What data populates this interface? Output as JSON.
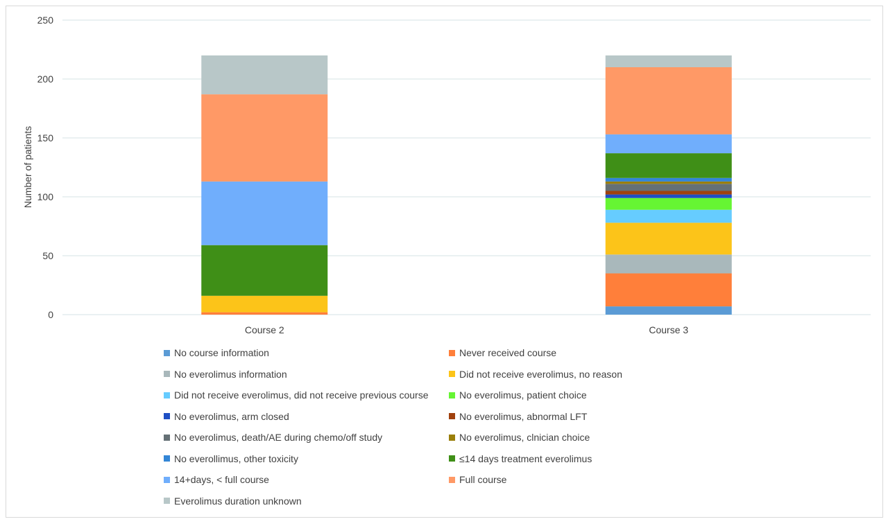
{
  "chart_data": {
    "type": "bar",
    "stacked": true,
    "title": "",
    "xlabel": "",
    "ylabel": "Number of patients",
    "ylim": [
      0,
      250
    ],
    "yticks": [
      0,
      50,
      100,
      150,
      200,
      250
    ],
    "grid": true,
    "legend_position": "bottom",
    "categories": [
      "Course 2",
      "Course 3"
    ],
    "series": [
      {
        "name": "No course information",
        "color": "#5b9bd5",
        "values": [
          0,
          7
        ]
      },
      {
        "name": "Never received course",
        "color": "#ff7f3a",
        "values": [
          2,
          28
        ]
      },
      {
        "name": "No everolimus information",
        "color": "#a9b8bb",
        "values": [
          0,
          16
        ]
      },
      {
        "name": "Did not receive everolimus, no reason",
        "color": "#fcc419",
        "values": [
          14,
          27
        ]
      },
      {
        "name": "Did not receive everolimus, did not receive previous course",
        "color": "#66ccff",
        "values": [
          0,
          11
        ]
      },
      {
        "name": "No everolimus, patient choice",
        "color": "#66f533",
        "values": [
          0,
          10
        ]
      },
      {
        "name": "No everolimus, arm closed",
        "color": "#1f4fc4",
        "values": [
          0,
          3
        ]
      },
      {
        "name": "No everolimus, abnormal LFT",
        "color": "#a0410d",
        "values": [
          0,
          3
        ]
      },
      {
        "name": "No everolimus, death/AE during chemo/off study",
        "color": "#657075",
        "values": [
          0,
          6
        ]
      },
      {
        "name": "No everolimus, clnician choice",
        "color": "#9a7f0a",
        "values": [
          0,
          2
        ]
      },
      {
        "name": "No everollimus, other toxicity",
        "color": "#3386d6",
        "values": [
          0,
          3
        ]
      },
      {
        "name": "≤14 days treatment everolimus",
        "color": "#3f8f17",
        "values": [
          43,
          21
        ]
      },
      {
        "name": "14+days, < full course",
        "color": "#70aefc",
        "values": [
          54,
          16
        ]
      },
      {
        "name": "Full course",
        "color": "#ff9966",
        "values": [
          74,
          57
        ]
      },
      {
        "name": "Everolimus duration unknown",
        "color": "#b8c7c8",
        "values": [
          33,
          10
        ]
      }
    ]
  }
}
